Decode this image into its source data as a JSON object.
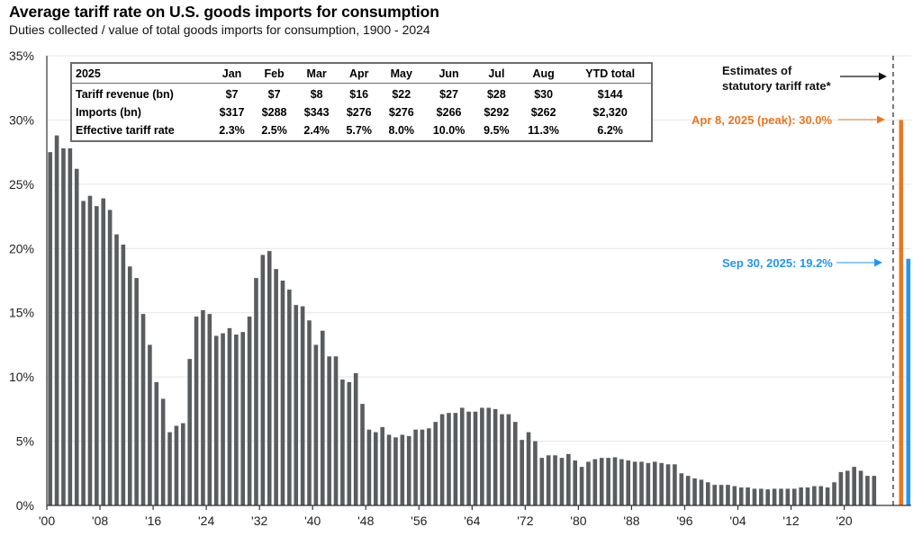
{
  "header": {
    "title": "Average tariff rate on U.S. goods imports for consumption",
    "subtitle": "Duties collected / value of total goods imports for consumption, 1900 - 2024"
  },
  "colors": {
    "bars": "#5a5d60",
    "peak_estimate": "#E87722",
    "current_estimate": "#2196F3",
    "grid": "#e6e6e6",
    "axis": "#333333"
  },
  "table": {
    "corner": "2025",
    "columns": [
      "Jan",
      "Feb",
      "Mar",
      "Apr",
      "May",
      "Jun",
      "Jul",
      "Aug",
      "YTD total"
    ],
    "rows": [
      {
        "label": "Tariff revenue (bn)",
        "values": [
          "$7",
          "$7",
          "$8",
          "$16",
          "$22",
          "$27",
          "$28",
          "$30",
          "$144"
        ]
      },
      {
        "label": "Imports (bn)",
        "values": [
          "$317",
          "$288",
          "$343",
          "$276",
          "$276",
          "$266",
          "$292",
          "$262",
          "$2,320"
        ]
      },
      {
        "label": "Effective tariff rate",
        "values": [
          "2.3%",
          "2.5%",
          "2.4%",
          "5.7%",
          "8.0%",
          "10.0%",
          "9.5%",
          "11.3%",
          "6.2%"
        ]
      }
    ]
  },
  "annotations": {
    "estimates_line1": "Estimates of",
    "estimates_line2": "statutory tariff rate*",
    "peak_label": "Apr 8, 2025 (peak): 30.0%",
    "current_label": "Sep 30, 2025: 19.2%"
  },
  "chart_data": {
    "type": "bar",
    "title": "Average tariff rate on U.S. goods imports for consumption",
    "subtitle": "Duties collected / value of total goods imports for consumption, 1900 - 2024",
    "xlabel": "",
    "ylabel": "",
    "ylim": [
      0,
      35
    ],
    "yticks": [
      0,
      5,
      10,
      15,
      20,
      25,
      30,
      35
    ],
    "ytick_labels": [
      "0%",
      "5%",
      "10%",
      "15%",
      "20%",
      "25%",
      "30%",
      "35%"
    ],
    "xtick_years": [
      1900,
      1908,
      1916,
      1924,
      1932,
      1940,
      1948,
      1956,
      1964,
      1972,
      1980,
      1988,
      1996,
      2004,
      2012,
      2020
    ],
    "xtick_labels": [
      "'00",
      "'08",
      "'16",
      "'24",
      "'32",
      "'40",
      "'48",
      "'56",
      "'64",
      "'72",
      "'80",
      "'88",
      "'96",
      "'04",
      "'12",
      "'20"
    ],
    "grid": true,
    "x_start": 1900,
    "series": [
      {
        "name": "Average tariff rate (%)",
        "values": [
          27.5,
          28.8,
          27.8,
          27.8,
          26.2,
          23.7,
          24.1,
          23.3,
          23.9,
          23.0,
          21.1,
          20.3,
          18.6,
          17.7,
          14.9,
          12.5,
          9.6,
          8.3,
          5.7,
          6.2,
          6.4,
          11.4,
          14.7,
          15.2,
          14.9,
          13.2,
          13.4,
          13.8,
          13.3,
          13.5,
          14.7,
          17.7,
          19.5,
          19.8,
          18.4,
          17.5,
          16.8,
          15.6,
          15.5,
          14.4,
          12.5,
          13.6,
          11.6,
          11.6,
          9.8,
          9.6,
          10.3,
          7.9,
          5.9,
          5.7,
          6.1,
          5.5,
          5.3,
          5.5,
          5.4,
          5.9,
          5.9,
          6.0,
          6.5,
          7.1,
          7.2,
          7.2,
          7.6,
          7.3,
          7.3,
          7.6,
          7.6,
          7.5,
          7.1,
          7.1,
          6.5,
          5.1,
          5.7,
          5.0,
          3.7,
          3.9,
          3.9,
          3.7,
          4.0,
          3.5,
          3.0,
          3.4,
          3.6,
          3.7,
          3.7,
          3.75,
          3.6,
          3.5,
          3.4,
          3.4,
          3.3,
          3.4,
          3.3,
          3.2,
          3.2,
          2.5,
          2.3,
          2.1,
          2.0,
          1.8,
          1.6,
          1.6,
          1.6,
          1.5,
          1.4,
          1.4,
          1.3,
          1.3,
          1.25,
          1.3,
          1.3,
          1.3,
          1.3,
          1.4,
          1.4,
          1.5,
          1.5,
          1.4,
          1.8,
          2.6,
          2.7,
          3.0,
          2.7,
          2.3,
          2.3
        ]
      }
    ],
    "estimates": [
      {
        "name": "Apr 8, 2025 (peak)",
        "value": 30.0,
        "color": "#E87722"
      },
      {
        "name": "Sep 30, 2025",
        "value": 19.2,
        "color": "#2196F3"
      }
    ],
    "annotations": [
      "Estimates of statutory tariff rate*",
      "Apr 8, 2025 (peak): 30.0%",
      "Sep 30, 2025: 19.2%"
    ]
  }
}
